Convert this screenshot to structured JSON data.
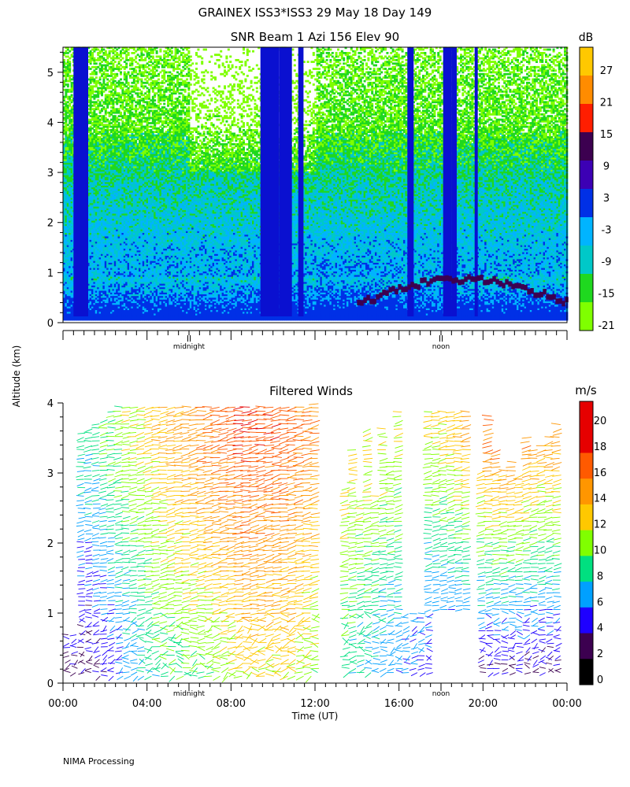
{
  "figure": {
    "title": "GRAINEX ISS3*ISS3  29 May 18 Day 149",
    "y_axis_label": "Altitude (km)",
    "footer": "NIMA Processing"
  },
  "chart_data": [
    {
      "type": "heatmap",
      "title": "SNR Beam 1 Azi 156 Elev 90",
      "colorbar_unit": "dB",
      "colorbar_ticks": [
        "-21",
        "-15",
        "-9",
        "-3",
        "3",
        "9",
        "15",
        "21",
        "27"
      ],
      "colorbar_colors": [
        "#7fff00",
        "#1fd81f",
        "#00c8c8",
        "#00b4ff",
        "#0030e6",
        "#3c00b4",
        "#3c0050",
        "#ff1e00",
        "#ff8c00",
        "#ffc800"
      ],
      "ylim": [
        0,
        5.5
      ],
      "y_ticks": [
        "0",
        "1",
        "2",
        "3",
        "4",
        "5"
      ],
      "xlim_hours": [
        0,
        24
      ],
      "x_markers": [
        {
          "hour": 6,
          "label": "midnight"
        },
        {
          "hour": 18,
          "label": "noon"
        }
      ]
    },
    {
      "type": "scatter",
      "title": "Filtered Winds",
      "colorbar_unit": "m/s",
      "colorbar_ticks": [
        "0",
        "2",
        "4",
        "6",
        "8",
        "10",
        "12",
        "14",
        "16",
        "18",
        "20"
      ],
      "colorbar_colors": [
        "#000000",
        "#3c0050",
        "#1e00ff",
        "#00a0ff",
        "#00e080",
        "#80ff00",
        "#ffc800",
        "#ff9600",
        "#ff5a00",
        "#e60000",
        "#e60000"
      ],
      "ylim": [
        0,
        4
      ],
      "y_ticks": [
        "0",
        "1",
        "2",
        "3",
        "4"
      ],
      "x_ticks": [
        "00:00",
        "04:00",
        "08:00",
        "12:00",
        "16:00",
        "20:00",
        "00:00"
      ],
      "xlabel": "Time (UT)",
      "x_markers": [
        {
          "hour": 6,
          "label": "midnight"
        },
        {
          "hour": 18,
          "label": "noon"
        }
      ],
      "wind_speed_by_hour": [
        {
          "hour": 1.5,
          "low": 3,
          "high": 9
        },
        {
          "hour": 3,
          "low": 6,
          "high": 11
        },
        {
          "hour": 5,
          "low": 9,
          "high": 14
        },
        {
          "hour": 7,
          "low": 10,
          "high": 16
        },
        {
          "hour": 9,
          "low": 12,
          "high": 18
        },
        {
          "hour": 11,
          "low": 12,
          "high": 17
        },
        {
          "hour": 14,
          "low": 8,
          "high": 13
        },
        {
          "hour": 16,
          "low": 6,
          "high": 12
        },
        {
          "hour": 18,
          "low": 4,
          "high": 12
        },
        {
          "hour": 21,
          "low": 3,
          "high": 17
        },
        {
          "hour": 23,
          "low": 3,
          "high": 15
        }
      ]
    }
  ]
}
